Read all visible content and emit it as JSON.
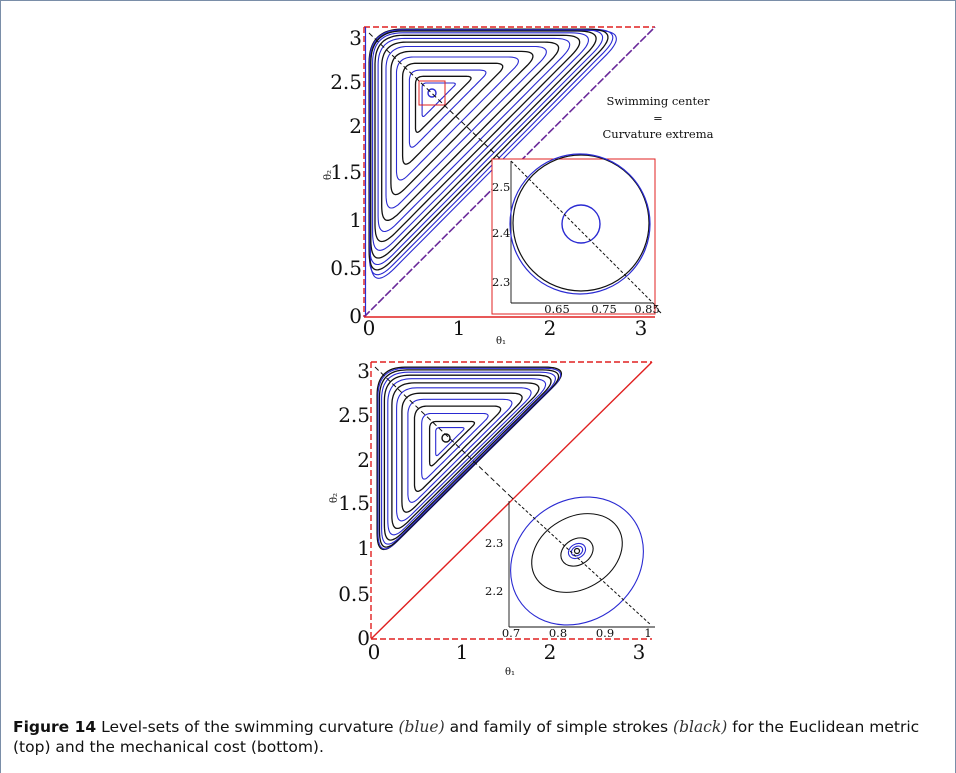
{
  "figure": {
    "top_panel": {
      "y_ticks": [
        "0",
        "0.5",
        "1",
        "1.5",
        "2",
        "2.5",
        "3"
      ],
      "x_ticks": [
        "0",
        "1",
        "2",
        "3"
      ],
      "xlabel": "θ₁",
      "ylabel": "θ₂",
      "annotation": {
        "line1": "Swimming center",
        "line2": "=",
        "line3": "Curvature extrema"
      },
      "inset": {
        "x_ticks": [
          "0.65",
          "0.75",
          "0.85"
        ],
        "y_ticks": [
          "2.3",
          "2.4",
          "2.5"
        ]
      }
    },
    "bottom_panel": {
      "y_ticks": [
        "0",
        "0.5",
        "1",
        "1.5",
        "2",
        "2.5",
        "3"
      ],
      "x_ticks": [
        "0",
        "1",
        "2",
        "3"
      ],
      "xlabel": "θ₁",
      "ylabel": "θ₂",
      "inset": {
        "x_ticks": [
          "0.7",
          "0.8",
          "0.9",
          "1"
        ],
        "y_ticks": [
          "2.2",
          "2.3"
        ]
      }
    },
    "colors": {
      "blue": "#2a2ad2",
      "black": "#111111",
      "red": "#e02020",
      "purple_diagonal": "#6a2a9a"
    }
  },
  "caption": {
    "label": "Figure 14",
    "text1": "Level-sets of the swimming curvature",
    "blue_word": "(blue)",
    "text2": "and family of simple strokes",
    "black_word": "(black)",
    "text3": "for the Euclidean metric (top) and the mechanical cost (bottom)."
  }
}
